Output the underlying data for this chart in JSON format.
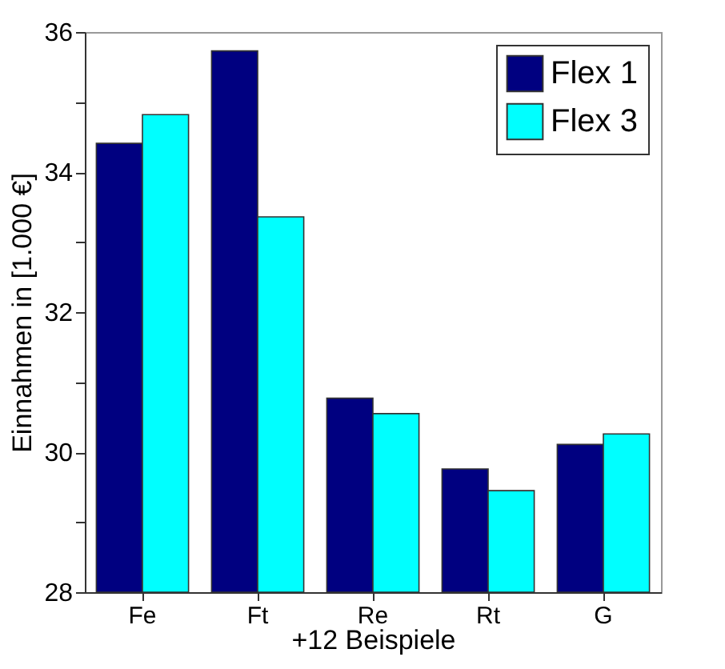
{
  "chart_data": {
    "type": "bar",
    "ylabel": "Einnahmen in [1.000 €]",
    "xlabel": "+12 Beispiele",
    "categories": [
      "Fe",
      "Ft",
      "Re",
      "Rt",
      "G"
    ],
    "series": [
      {
        "name": "Flex 1",
        "color": "#000080",
        "values": [
          34.41,
          35.73,
          30.77,
          29.76,
          30.11
        ]
      },
      {
        "name": "Flex 3",
        "color": "#00ffff",
        "values": [
          34.82,
          33.36,
          30.55,
          29.45,
          30.26
        ]
      }
    ],
    "ylim": [
      28,
      36
    ],
    "yticks": [
      28,
      {
        "value": 29,
        "label": null
      },
      30,
      {
        "value": 31,
        "label": null
      },
      32,
      {
        "value": 33,
        "label": null
      },
      34,
      {
        "value": 35,
        "label": null
      },
      36
    ],
    "grid": false,
    "legend": "top right"
  }
}
